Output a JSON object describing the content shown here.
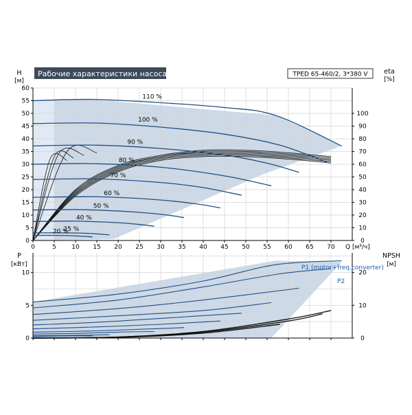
{
  "chart_data": [
    {
      "type": "line",
      "title": "Рабочие характеристики насоса",
      "subtitle": "TPED 65-460/2, 3*380 V",
      "xlabel": "Q [м³/ч]",
      "ylabel_left": {
        "symbol": "H",
        "unit": "[м]"
      },
      "ylabel_right": {
        "symbol": "eta",
        "unit": "[%]"
      },
      "xlim": [
        0,
        75
      ],
      "xticks": [
        0,
        5,
        10,
        15,
        20,
        25,
        30,
        35,
        40,
        45,
        50,
        55,
        60,
        65,
        70
      ],
      "ylim": [
        0,
        60
      ],
      "yticks": [
        0,
        5,
        10,
        15,
        20,
        25,
        30,
        35,
        40,
        45,
        50,
        55,
        60
      ],
      "y2ticks": [
        0,
        10,
        20,
        30,
        40,
        50,
        60,
        70,
        80,
        90,
        100
      ],
      "grid": true,
      "operating_envelope": [
        [
          0,
          55
        ],
        [
          14,
          55.5
        ],
        [
          57,
          49.2
        ],
        [
          72.5,
          37.2
        ],
        [
          54,
          26
        ],
        [
          19,
          0.6
        ],
        [
          0,
          0
        ]
      ],
      "series": [
        {
          "name": "110 %",
          "x": [
            0,
            14,
            30,
            45,
            57,
            72.5
          ],
          "y": [
            55,
            55.5,
            54.2,
            52.3,
            49.2,
            37.2
          ]
        },
        {
          "name": "100 %",
          "x": [
            0,
            15,
            30,
            45,
            58,
            69
          ],
          "y": [
            46,
            46.2,
            44.6,
            41.8,
            37.5,
            30.8
          ]
        },
        {
          "name": "90 %",
          "x": [
            0,
            15,
            30,
            45,
            55,
            62.5
          ],
          "y": [
            37.2,
            37.5,
            36.2,
            33.6,
            30.4,
            26.8
          ]
        },
        {
          "name": "80 %",
          "x": [
            0,
            15,
            30,
            45,
            56
          ],
          "y": [
            30,
            30.2,
            28.8,
            25.4,
            21.5
          ]
        },
        {
          "name": "70 %",
          "x": [
            0,
            15,
            30,
            40,
            49
          ],
          "y": [
            24,
            24.2,
            22.8,
            20.8,
            17.8
          ]
        },
        {
          "name": "60 %",
          "x": [
            0,
            15,
            28,
            38,
            44
          ],
          "y": [
            17,
            17.2,
            16.2,
            14.5,
            12.8
          ]
        },
        {
          "name": "50 %",
          "x": [
            0,
            12,
            24,
            31,
            35.5
          ],
          "y": [
            12,
            12.1,
            11.2,
            10.1,
            9.0
          ]
        },
        {
          "name": "40 %",
          "x": [
            0,
            10,
            20,
            25,
            28.5
          ],
          "y": [
            7.5,
            7.6,
            7.0,
            6.3,
            5.6
          ]
        },
        {
          "name": "25 %",
          "x": [
            0,
            8,
            14,
            18
          ],
          "y": [
            3,
            3.0,
            2.7,
            2.2
          ]
        },
        {
          "name": "20 %",
          "x": [
            0,
            6,
            10,
            14
          ],
          "y": [
            2,
            2.0,
            1.8,
            1.4
          ]
        }
      ],
      "efficiency_curves": [
        {
          "x": [
            0,
            10,
            20,
            30,
            40,
            50,
            60,
            70
          ],
          "y2": [
            0,
            40,
            59,
            67,
            71,
            71,
            69,
            66
          ]
        },
        {
          "x": [
            0,
            10,
            20,
            30,
            40,
            50,
            60,
            70
          ],
          "y2": [
            0,
            39,
            58,
            66,
            70,
            70,
            68,
            65
          ]
        },
        {
          "x": [
            0,
            10,
            20,
            30,
            40,
            50,
            60,
            70
          ],
          "y2": [
            0,
            38,
            57,
            66,
            69,
            69,
            67,
            64
          ]
        },
        {
          "x": [
            0,
            10,
            20,
            30,
            40,
            50,
            60,
            70
          ],
          "y2": [
            0,
            37,
            56,
            65,
            68,
            68,
            66,
            63
          ]
        },
        {
          "x": [
            0,
            10,
            20,
            30,
            40,
            50,
            60,
            70
          ],
          "y2": [
            0,
            36,
            55,
            64,
            67,
            67,
            65,
            62
          ]
        },
        {
          "x": [
            0,
            10,
            20,
            30,
            40,
            50,
            60,
            70
          ],
          "y2": [
            0,
            35,
            54,
            63,
            66,
            66,
            64,
            61
          ]
        }
      ]
    },
    {
      "type": "line",
      "ylabel_left": {
        "symbol": "P",
        "unit": "[кВт]"
      },
      "ylabel_right": {
        "symbol": "NPSH",
        "unit": "[м]"
      },
      "xlim": [
        0,
        75
      ],
      "ylim": [
        0,
        13
      ],
      "yticks": [
        0,
        5,
        10
      ],
      "y2ticks": [
        0,
        10,
        20
      ],
      "grid": true,
      "operating_envelope": [
        [
          0,
          5.5
        ],
        [
          57,
          11.8
        ],
        [
          72.5,
          11.6
        ],
        [
          56,
          0
        ],
        [
          0,
          0
        ]
      ],
      "series_labels": [
        "P1 (motor+freq.converter)",
        "P2"
      ],
      "power_curves": [
        {
          "x": [
            0,
            20,
            40,
            57,
            72.5
          ],
          "y": [
            5.5,
            6.7,
            8.7,
            11.2,
            11.8
          ]
        },
        {
          "x": [
            0,
            20,
            40,
            58,
            70
          ],
          "y": [
            4.6,
            5.8,
            7.8,
            9.8,
            10.6
          ]
        },
        {
          "x": [
            0,
            20,
            40,
            62.5
          ],
          "y": [
            3.6,
            4.5,
            5.8,
            7.6
          ]
        },
        {
          "x": [
            0,
            20,
            40,
            56
          ],
          "y": [
            2.7,
            3.4,
            4.2,
            5.4
          ]
        },
        {
          "x": [
            0,
            15,
            30,
            49
          ],
          "y": [
            2.0,
            2.4,
            3.0,
            3.8
          ]
        },
        {
          "x": [
            0,
            15,
            30,
            44
          ],
          "y": [
            1.4,
            1.7,
            2.1,
            2.6
          ]
        },
        {
          "x": [
            0,
            15,
            28,
            35.5
          ],
          "y": [
            0.9,
            1.1,
            1.4,
            1.6
          ]
        },
        {
          "x": [
            0,
            10,
            20,
            28.5
          ],
          "y": [
            0.6,
            0.7,
            0.9,
            1.0
          ]
        },
        {
          "x": [
            0,
            8,
            14,
            18
          ],
          "y": [
            0.35,
            0.4,
            0.45,
            0.5
          ]
        },
        {
          "x": [
            0,
            6,
            10,
            14
          ],
          "y": [
            0.25,
            0.3,
            0.32,
            0.35
          ]
        }
      ],
      "npsh_curves": [
        {
          "x": [
            0,
            20,
            40,
            60,
            70
          ],
          "y2": [
            0,
            0.3,
            2.0,
            5.8,
            8.4
          ]
        },
        {
          "x": [
            0,
            20,
            40,
            60,
            68
          ],
          "y2": [
            0,
            0.3,
            1.8,
            5.2,
            7.4
          ]
        },
        {
          "x": [
            0,
            20,
            40,
            58
          ],
          "y2": [
            0,
            0.2,
            1.5,
            4.2
          ]
        }
      ]
    }
  ]
}
